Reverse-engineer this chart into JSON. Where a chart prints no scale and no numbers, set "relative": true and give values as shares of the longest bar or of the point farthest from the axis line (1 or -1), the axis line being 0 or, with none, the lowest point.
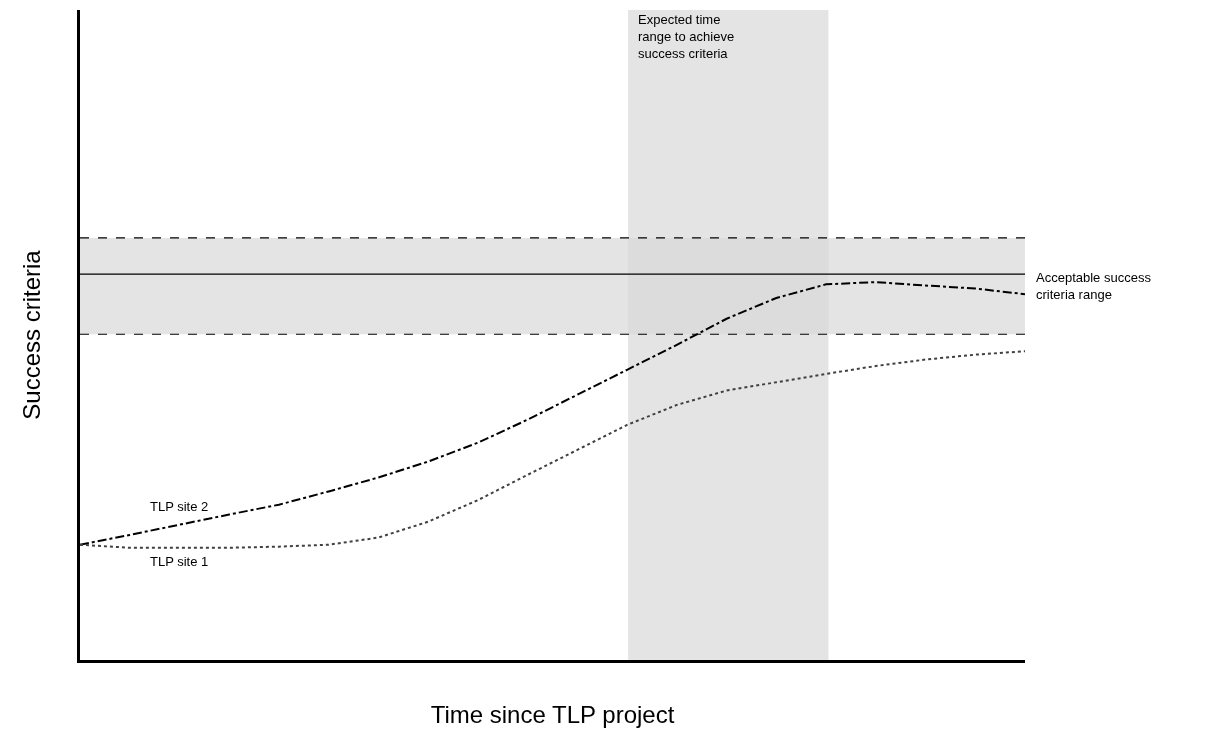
{
  "chart_data": {
    "type": "line",
    "relative": true,
    "xlabel": "Time since TLP project",
    "ylabel": "Success criteria",
    "tick_labels": false,
    "grid": false,
    "legend": false,
    "categories": [
      null,
      null,
      null,
      null,
      null,
      null,
      null,
      null,
      null,
      null,
      null,
      null,
      null,
      null,
      null,
      null,
      null,
      null,
      null,
      null
    ],
    "series": [
      {
        "name": "TLP site 2",
        "color": "#000000",
        "line_style": "dashdot",
        "values": [
          0.305,
          0.331,
          0.358,
          0.385,
          0.411,
          0.446,
          0.483,
          0.525,
          0.575,
          0.636,
          0.702,
          0.768,
          0.834,
          0.903,
          0.958,
          0.994,
          1.0,
          0.991,
          0.983,
          0.968
        ]
      },
      {
        "name": "TLP site 1",
        "color": "#404040",
        "line_style": "dotted",
        "values": [
          0.305,
          0.297,
          0.297,
          0.297,
          0.3,
          0.305,
          0.324,
          0.366,
          0.423,
          0.49,
          0.556,
          0.622,
          0.675,
          0.713,
          0.735,
          0.757,
          0.778,
          0.795,
          0.808,
          0.817
        ]
      }
    ],
    "bands": [
      {
        "axis": "y",
        "from": 0.862,
        "to": 1.117,
        "label": "Acceptable success criteria range",
        "color": "#d9d9d9"
      }
    ],
    "annotations": [
      "Expected time range to achieve success criteria"
    ],
    "ref_lines": [
      {
        "axis": "y",
        "value": 0.862,
        "color": "#000000",
        "line_style": "dashed"
      },
      {
        "axis": "y",
        "value": 1.117,
        "color": "#000000",
        "line_style": "dashed"
      },
      {
        "axis": "y",
        "value": 1.021,
        "color": "#000000",
        "line_style": "solid"
      }
    ]
  }
}
